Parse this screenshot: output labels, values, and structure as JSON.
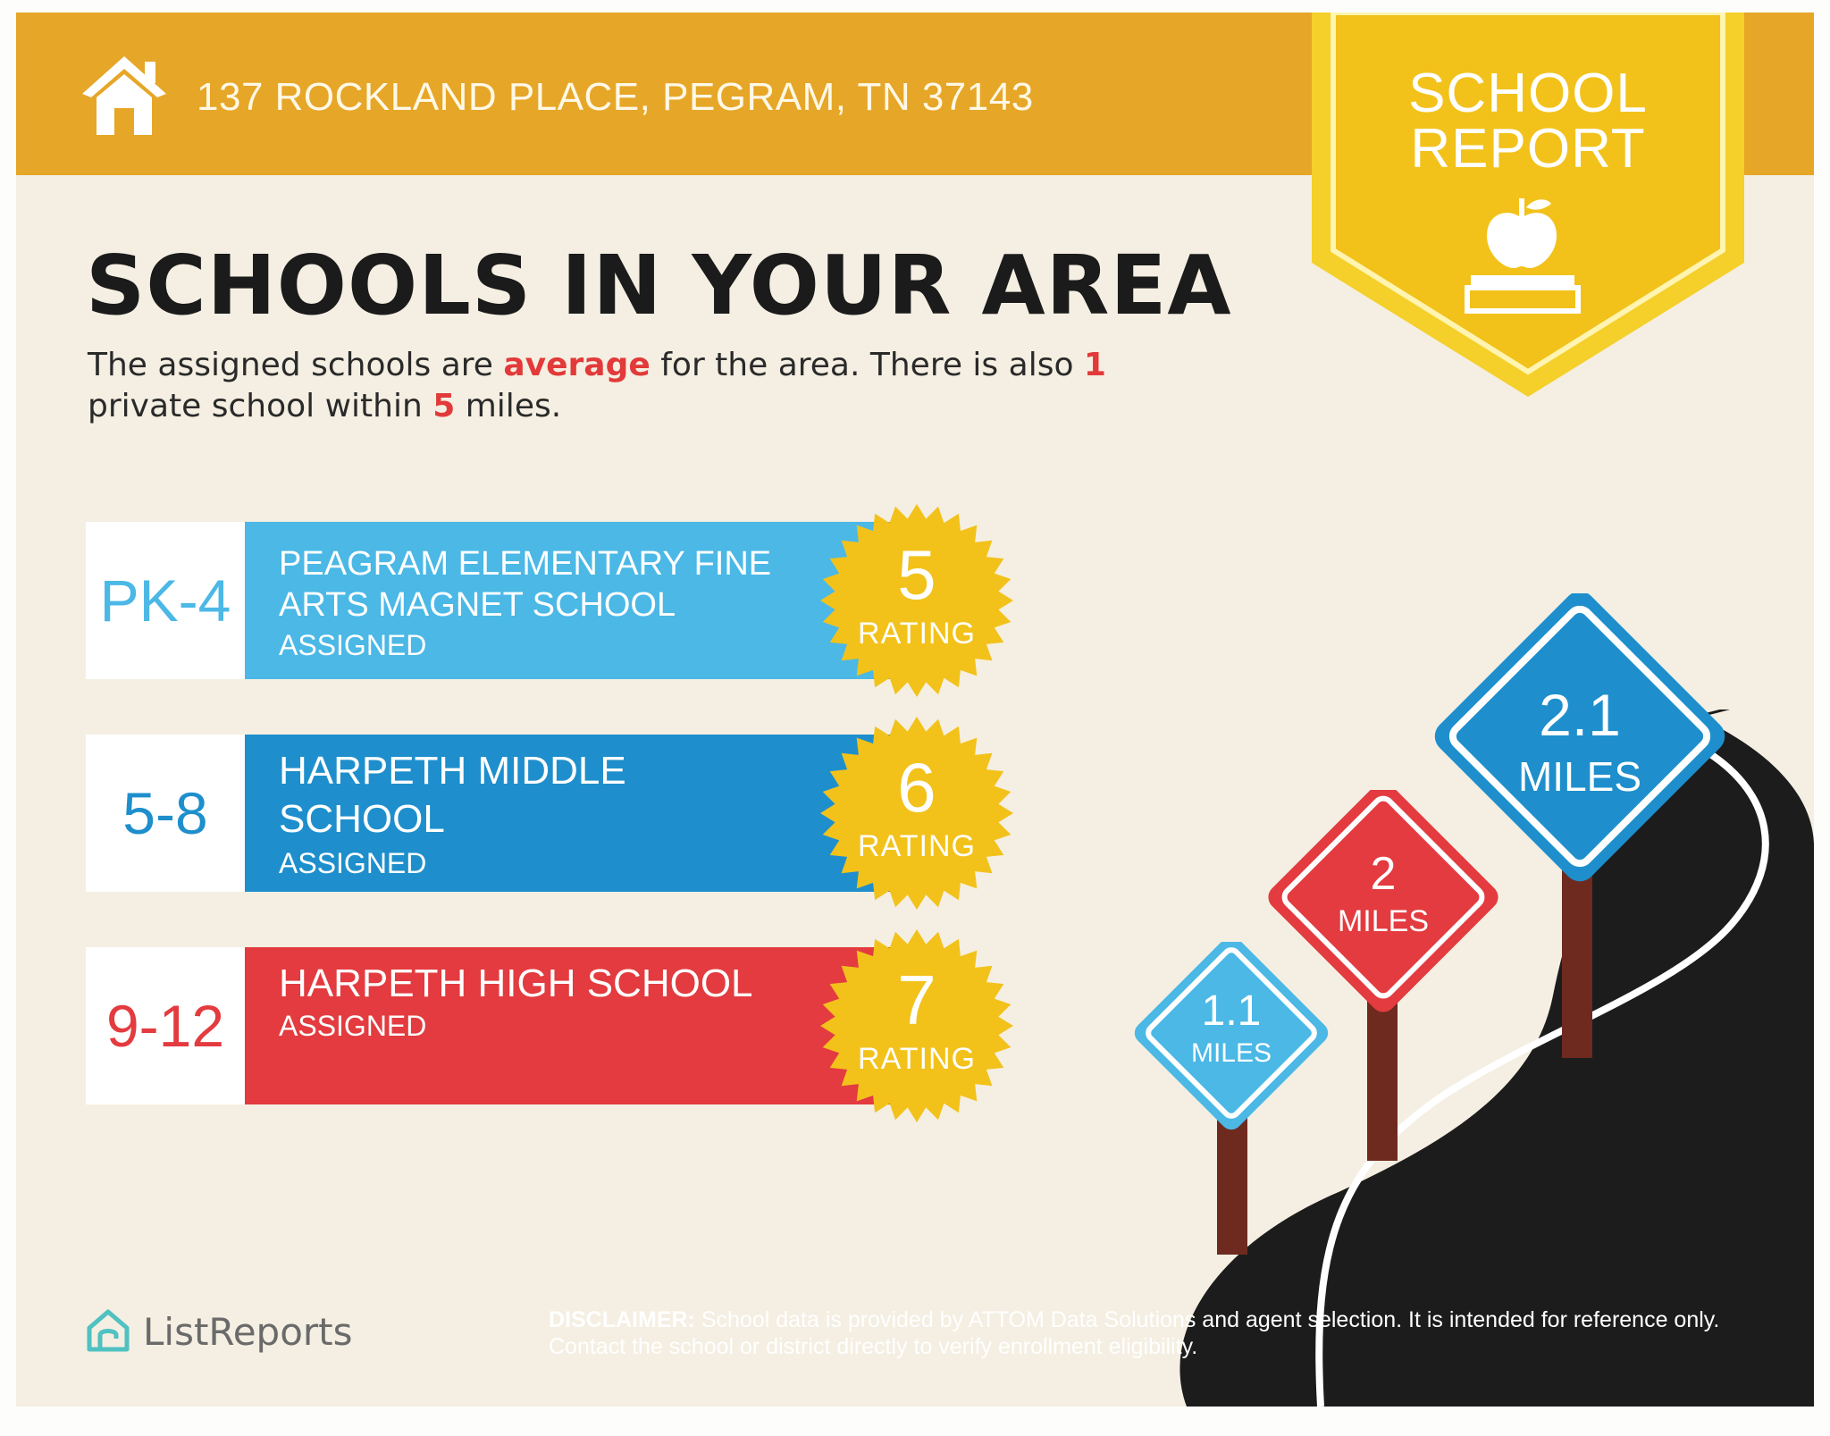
{
  "header": {
    "address": "137 ROCKLAND PLACE, PEGRAM, TN 37143",
    "home_icon": "house-icon",
    "badge_line1": "SCHOOL",
    "badge_line2": "REPORT",
    "badge_icon": "apple-on-book-icon"
  },
  "main": {
    "title": "SCHOOLS IN YOUR AREA",
    "summary": {
      "part1": "The assigned schools are ",
      "highlight1": "average",
      "part2": " for the area. There is also ",
      "highlight2": "1",
      "part3": " private school within ",
      "highlight3": "5",
      "part4": " miles."
    }
  },
  "schools": [
    {
      "grades": "PK-4",
      "name_line1": "PEAGRAM ELEMENTARY FINE",
      "name_line2": "ARTS MAGNET SCHOOL",
      "status": "ASSIGNED",
      "rating": "5",
      "rating_label": "RATING"
    },
    {
      "grades": "5-8",
      "name_line1": "HARPETH MIDDLE",
      "name_line2": "SCHOOL",
      "status": "ASSIGNED",
      "rating": "6",
      "rating_label": "RATING"
    },
    {
      "grades": "9-12",
      "name_line1": "HARPETH HIGH SCHOOL",
      "status": "ASSIGNED",
      "rating": "7",
      "rating_label": "RATING"
    }
  ],
  "distances": [
    {
      "value": "1.1",
      "unit": "MILES"
    },
    {
      "value": "2",
      "unit": "MILES"
    },
    {
      "value": "2.1",
      "unit": "MILES"
    }
  ],
  "footer": {
    "logo_text": "ListReports",
    "logo_icon": "house-outline-icon",
    "disclaimer_label": "DISCLAIMER:",
    "disclaimer_text": " School data is provided by ATTOM Data Solutions and agent selection. It is intended for reference only. Contact the school or district directly to verify enrollment eligibility."
  },
  "colors": {
    "header": "#e6a627",
    "badge": "#f2c21b",
    "elementary": "#4bb8e6",
    "middle": "#1e8fcc",
    "high": "#e33b3f",
    "seal": "#f2c21b",
    "road": "#1c1c1c"
  }
}
